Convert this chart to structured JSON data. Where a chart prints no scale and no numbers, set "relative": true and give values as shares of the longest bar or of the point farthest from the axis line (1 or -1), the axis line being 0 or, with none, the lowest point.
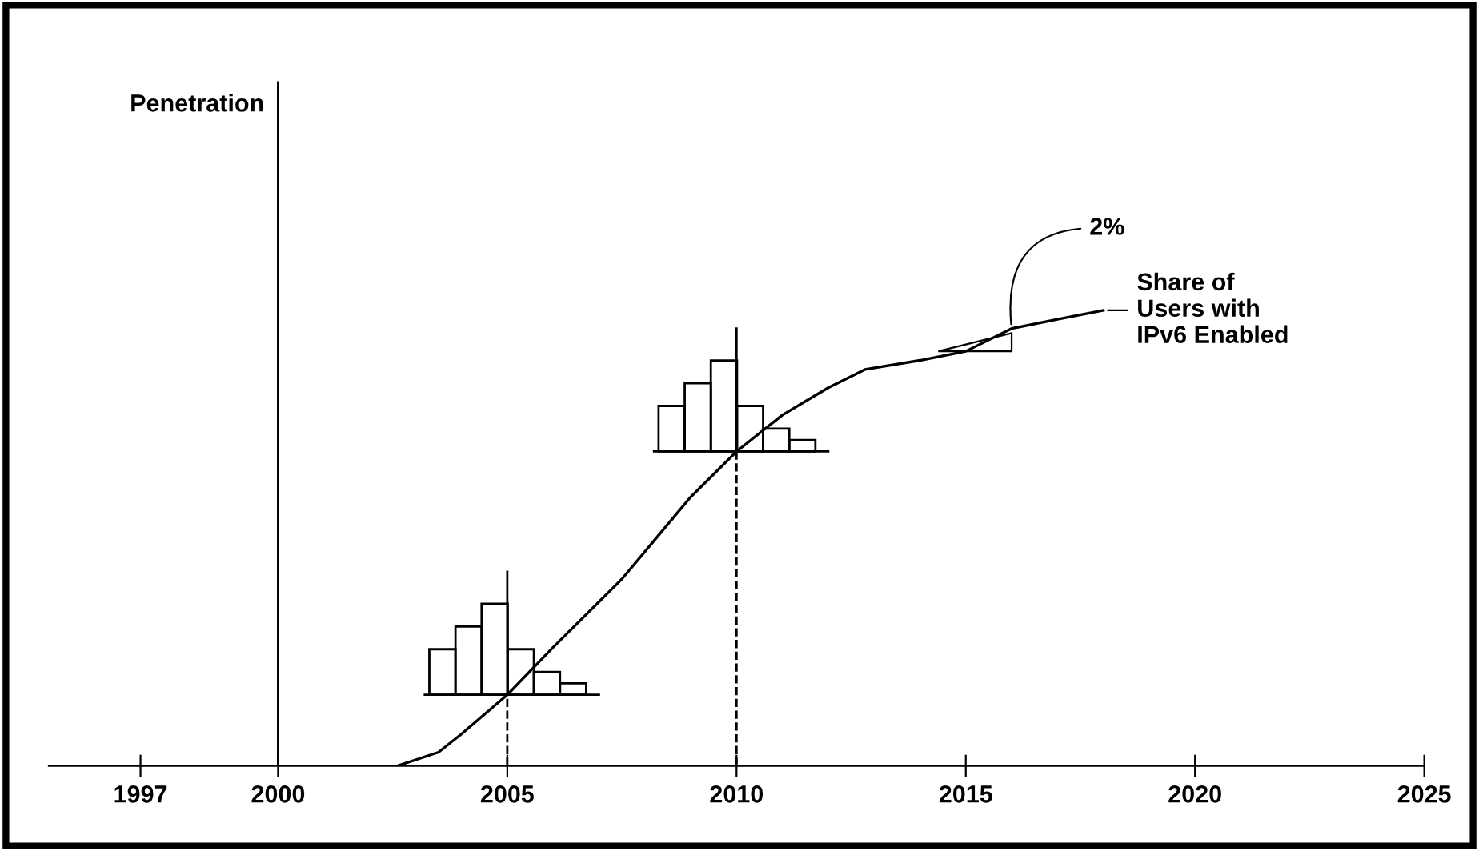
{
  "chart_data": {
    "type": "line",
    "relative": true,
    "ref_lines": [
      {
        "axis": "x",
        "value": 2000,
        "line_style": "solid"
      },
      {
        "axis": "x",
        "value": 2005,
        "line_style": "dashed"
      },
      {
        "axis": "x",
        "value": 2010,
        "line_style": "dashed"
      }
    ],
    "xlim": [
      1995,
      2025
    ],
    "xticks": [
      1997,
      2000,
      2005,
      2010,
      2015,
      2020,
      2025
    ],
    "series": [
      {
        "name": "Share of Users with IPv6 Enabled",
        "color": "#000000",
        "x": [
          2002.6,
          2003.5,
          2004,
          2005,
          2006,
          2007,
          2007.5,
          2008,
          2009,
          2010,
          2011,
          2012,
          2012.8,
          2014,
          2015,
          2016,
          2017,
          2018
        ],
        "values": [
          0,
          0.03,
          0.07,
          0.156,
          0.26,
          0.36,
          0.41,
          0.47,
          0.59,
          0.69,
          0.77,
          0.83,
          0.87,
          0.89,
          0.91,
          0.96,
          0.98,
          1.0
        ]
      }
    ],
    "annotations": [
      "Penetration",
      {
        "text": "2%",
        "x": 2016,
        "y": 0.96
      }
    ],
    "grid": false,
    "legend": "right",
    "marker": "none",
    "line_style": "solid"
  }
}
